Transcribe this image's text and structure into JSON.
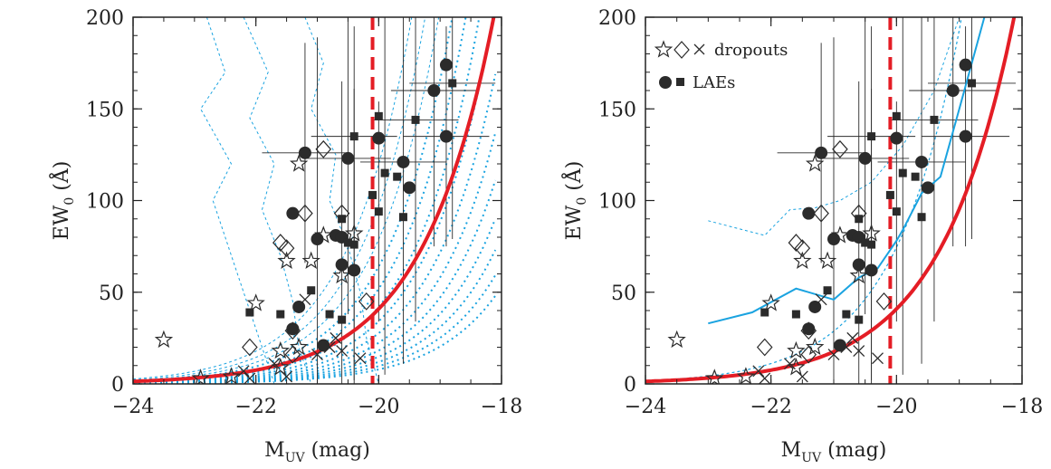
{
  "chart_data": [
    {
      "type": "scatter",
      "panel": "left",
      "xlabel": "M",
      "xlabel_sub": "UV",
      "xlabel_unit": " (mag)",
      "ylabel": "EW",
      "ylabel_sub": "0",
      "ylabel_unit": " (Å)",
      "xlim": [
        -24,
        -18
      ],
      "ylim": [
        0,
        200
      ],
      "x_ticks": [
        "−24",
        "−22",
        "−20",
        "−18"
      ],
      "y_ticks": [
        "0",
        "50",
        "100",
        "150",
        "200"
      ],
      "grid": false,
      "vline_x": -20.1,
      "curve": {
        "A": 1.5,
        "M0": -23.9,
        "tau": 1.18
      },
      "series": [
        {
          "marker": "circle",
          "points": [
            [
              -21.2,
              126
            ],
            [
              -21.4,
              93
            ],
            [
              -21.0,
              79
            ],
            [
              -20.7,
              81
            ],
            [
              -20.5,
              123
            ],
            [
              -20.6,
              65
            ],
            [
              -20.4,
              62
            ],
            [
              -20.0,
              134
            ],
            [
              -19.6,
              121
            ],
            [
              -19.5,
              107
            ],
            [
              -19.1,
              160
            ],
            [
              -18.9,
              174
            ],
            [
              -18.9,
              135
            ],
            [
              -21.4,
              30
            ],
            [
              -21.3,
              42
            ],
            [
              -20.9,
              21
            ],
            [
              -20.6,
              80
            ]
          ]
        },
        {
          "marker": "square",
          "points": [
            [
              -20.4,
              135
            ],
            [
              -20.0,
              146
            ],
            [
              -19.9,
              115
            ],
            [
              -20.1,
              103
            ],
            [
              -20.4,
              76
            ],
            [
              -20.6,
              90
            ],
            [
              -20.0,
              94
            ],
            [
              -19.7,
              113
            ],
            [
              -19.4,
              144
            ],
            [
              -19.6,
              91
            ],
            [
              -18.8,
              164
            ],
            [
              -22.1,
              39
            ],
            [
              -21.6,
              38
            ],
            [
              -21.4,
              30
            ],
            [
              -21.1,
              51
            ],
            [
              -20.8,
              38
            ],
            [
              -20.6,
              35
            ],
            [
              -20.5,
              77
            ]
          ]
        },
        {
          "marker": "star",
          "points": [
            [
              -23.5,
              24
            ],
            [
              -22.0,
              44
            ],
            [
              -21.5,
              67
            ],
            [
              -21.3,
              120
            ],
            [
              -21.1,
              67
            ],
            [
              -20.9,
              81
            ],
            [
              -20.6,
              59
            ],
            [
              -20.4,
              82
            ],
            [
              -21.6,
              18
            ],
            [
              -21.6,
              9
            ],
            [
              -22.9,
              3
            ],
            [
              -22.4,
              4
            ],
            [
              -21.3,
              20
            ]
          ]
        },
        {
          "marker": "diamond",
          "points": [
            [
              -21.6,
              77
            ],
            [
              -21.5,
              74
            ],
            [
              -21.2,
              93
            ],
            [
              -20.9,
              128
            ],
            [
              -20.6,
              93
            ],
            [
              -20.2,
              45
            ],
            [
              -22.1,
              20
            ],
            [
              -21.4,
              29
            ],
            [
              -21.4,
              16
            ]
          ]
        },
        {
          "marker": "cross",
          "points": [
            [
              -21.2,
              46
            ],
            [
              -20.8,
              20
            ],
            [
              -21.7,
              11
            ],
            [
              -21.5,
              4
            ],
            [
              -22.2,
              7
            ],
            [
              -22.1,
              3
            ],
            [
              -21.0,
              16
            ],
            [
              -20.7,
              25
            ],
            [
              -20.3,
              14
            ],
            [
              -20.6,
              18
            ]
          ]
        }
      ]
    },
    {
      "type": "scatter",
      "panel": "right",
      "xlabel": "M",
      "xlabel_sub": "UV",
      "xlabel_unit": " (mag)",
      "ylabel": "EW",
      "ylabel_sub": "0",
      "ylabel_unit": " (Å)",
      "xlim": [
        -24,
        -18
      ],
      "ylim": [
        0,
        200
      ],
      "x_ticks": [
        "−24",
        "−22",
        "−20",
        "−18"
      ],
      "y_ticks": [
        "0",
        "50",
        "100",
        "150",
        "200"
      ],
      "grid": false,
      "vline_x": -20.1,
      "curve": {
        "A": 1.5,
        "M0": -23.9,
        "tau": 1.18
      },
      "legend": {
        "placement": "top-left",
        "entries": [
          {
            "symbols": "☆◇×",
            "label": "dropouts"
          },
          {
            "symbols": "●■",
            "label": "LAEs"
          }
        ]
      },
      "blue_line": [
        [
          -23.0,
          33
        ],
        [
          -22.3,
          39
        ],
        [
          -21.6,
          52
        ],
        [
          -21.0,
          46
        ],
        [
          -20.6,
          58
        ],
        [
          -20.3,
          63
        ],
        [
          -20.0,
          78
        ],
        [
          -19.9,
          84
        ],
        [
          -19.6,
          104
        ],
        [
          -19.3,
          113
        ],
        [
          -19.0,
          150
        ],
        [
          -18.6,
          200
        ]
      ]
    }
  ]
}
